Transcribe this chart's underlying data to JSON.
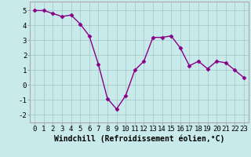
{
  "x": [
    0,
    1,
    2,
    3,
    4,
    5,
    6,
    7,
    8,
    9,
    10,
    11,
    12,
    13,
    14,
    15,
    16,
    17,
    18,
    19,
    20,
    21,
    22,
    23
  ],
  "y": [
    5.0,
    5.0,
    4.8,
    4.6,
    4.7,
    4.1,
    3.3,
    1.4,
    -0.9,
    -1.6,
    -0.7,
    1.0,
    1.6,
    3.2,
    3.2,
    3.3,
    2.5,
    1.3,
    1.6,
    1.1,
    1.6,
    1.5,
    1.0,
    0.5
  ],
  "line_color": "#880088",
  "marker": "D",
  "marker_size": 2.5,
  "background_color": "#c8eaea",
  "grid_color": "#aacccc",
  "spine_color": "#aaaaaa",
  "xlabel": "Windchill (Refroidissement éolien,°C)",
  "ylabel": "",
  "xlim": [
    -0.5,
    23.5
  ],
  "ylim": [
    -2.5,
    5.6
  ],
  "yticks": [
    -2,
    -1,
    0,
    1,
    2,
    3,
    4,
    5
  ],
  "xticks": [
    0,
    1,
    2,
    3,
    4,
    5,
    6,
    7,
    8,
    9,
    10,
    11,
    12,
    13,
    14,
    15,
    16,
    17,
    18,
    19,
    20,
    21,
    22,
    23
  ],
  "xlabel_fontsize": 7,
  "tick_fontsize": 6.5,
  "line_width": 1.0
}
